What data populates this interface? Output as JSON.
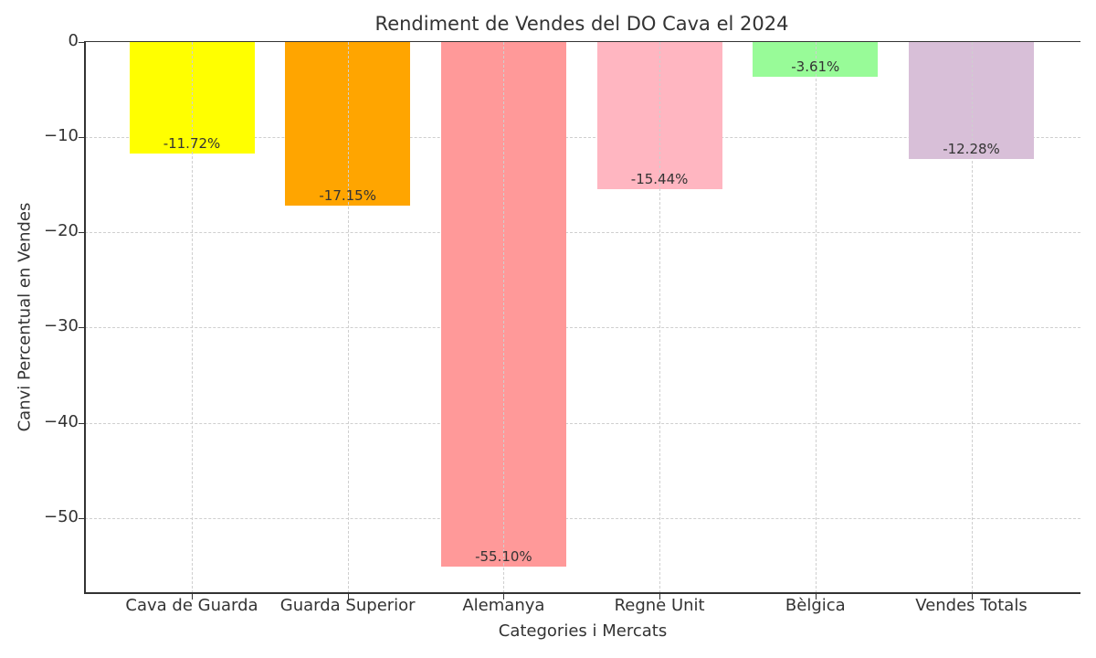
{
  "chart_data": {
    "type": "bar",
    "title": "Rendiment de Vendes del DO Cava el 2024",
    "xlabel": "Categories i Mercats",
    "ylabel": "Canvi Percentual en Vendes",
    "categories": [
      "Cava de Guarda",
      "Guarda Superior",
      "Alemanya",
      "Regne Unit",
      "Bèlgica",
      "Vendes Totals"
    ],
    "values": [
      -11.72,
      -17.15,
      -55.1,
      -15.44,
      -3.61,
      -12.28
    ],
    "value_labels": [
      "-11.72%",
      "-17.15%",
      "-55.10%",
      "-15.44%",
      "-3.61%",
      "-12.28%"
    ],
    "colors": [
      "#ffff00",
      "#ffa500",
      "#ff9999",
      "#ffb6c1",
      "#98fb98",
      "#d8bfd8"
    ],
    "ylim": [
      -57.9,
      0
    ],
    "yticks": [
      0,
      -10,
      -20,
      -30,
      -40,
      -50
    ],
    "ytick_labels": [
      "0",
      "−10",
      "−20",
      "−30",
      "−40",
      "−50"
    ],
    "grid": true,
    "legend": null
  }
}
